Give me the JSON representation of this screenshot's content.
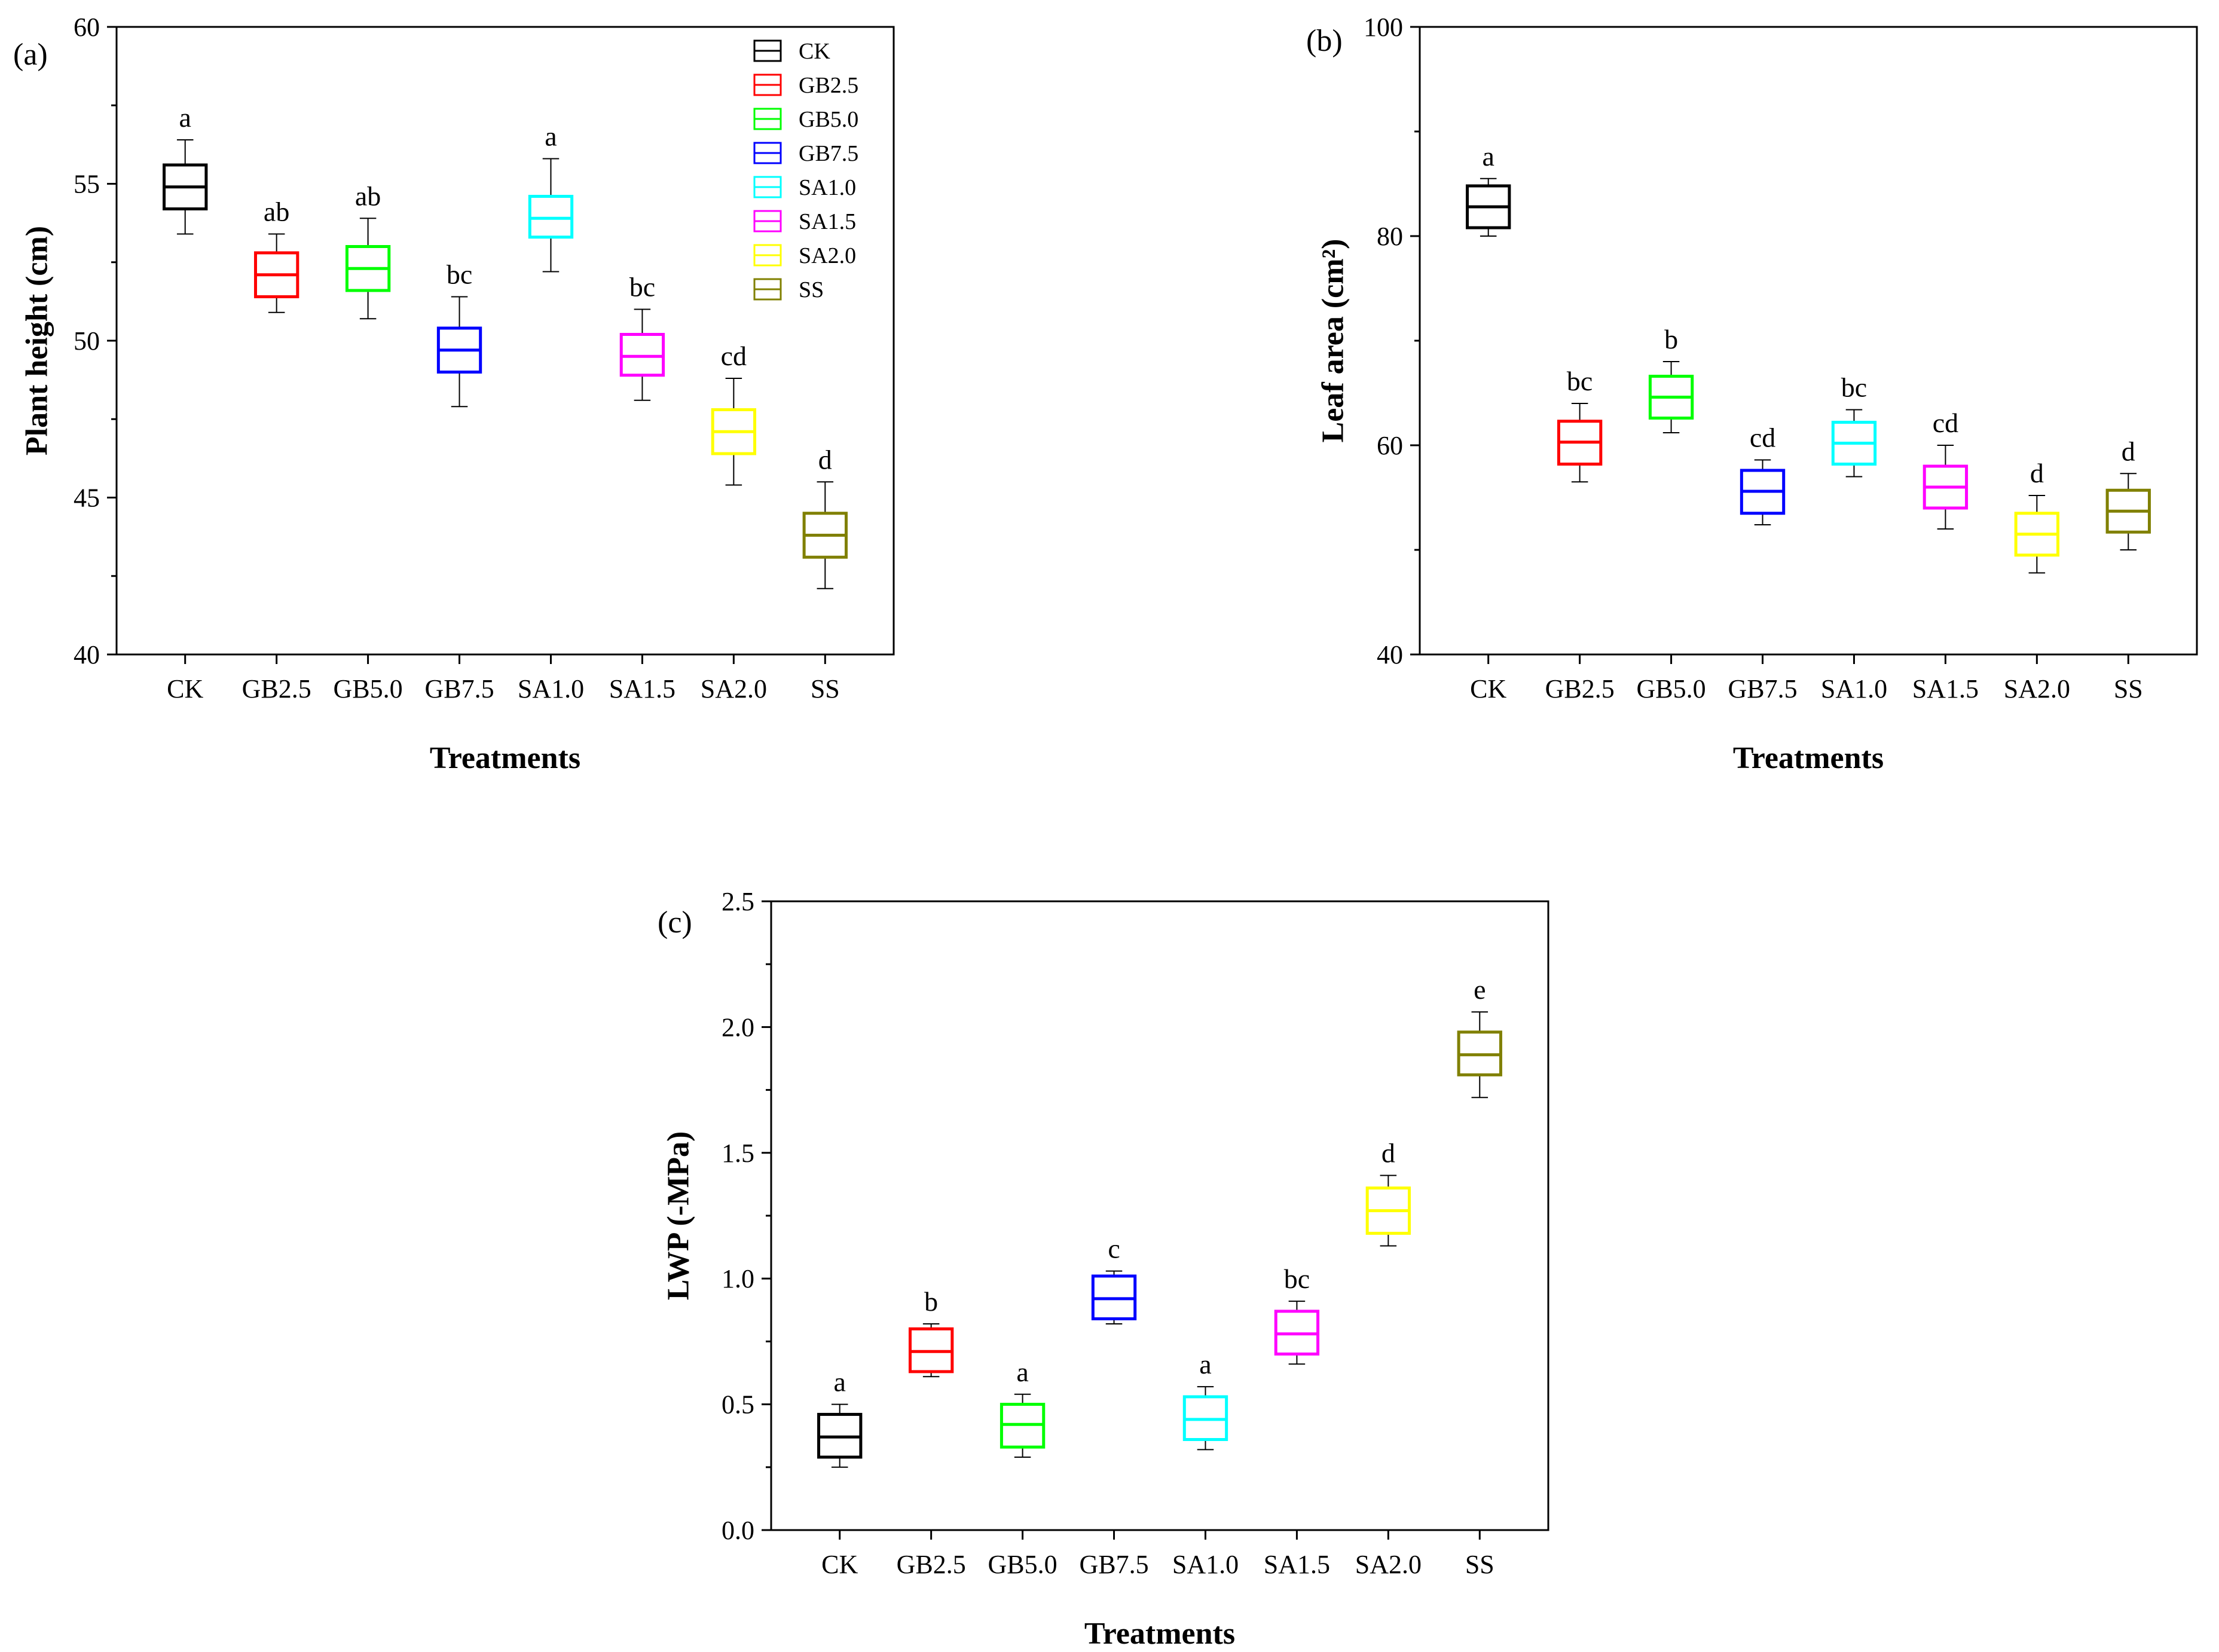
{
  "categories": [
    "CK",
    "GB2.5",
    "GB5.0",
    "GB7.5",
    "SA1.0",
    "SA1.5",
    "SA2.0",
    "SS"
  ],
  "colors": {
    "CK": "#000000",
    "GB2.5": "#ff0000",
    "GB5.0": "#00ff00",
    "GB7.5": "#0000ff",
    "SA1.0": "#00ffff",
    "SA1.5": "#ff00ff",
    "SA2.0": "#ffff00",
    "SS": "#808000"
  },
  "legend": {
    "position": "top-right (panel a)",
    "entries": [
      "CK",
      "GB2.5",
      "GB5.0",
      "GB7.5",
      "SA1.0",
      "SA1.5",
      "SA2.0",
      "SS"
    ]
  },
  "chart_data": [
    {
      "type": "box",
      "panel": "(a)",
      "xlabel": "Treatments",
      "ylabel": "Plant height (cm)",
      "ylim": [
        40,
        60
      ],
      "yticks": [
        "40",
        "45",
        "50",
        "55",
        "60"
      ],
      "boxes": [
        {
          "category": "CK",
          "whisker_low": 53.4,
          "q1": 54.2,
          "median": 54.9,
          "q3": 55.6,
          "whisker_high": 56.4,
          "letter": "a"
        },
        {
          "category": "GB2.5",
          "whisker_low": 50.9,
          "q1": 51.4,
          "median": 52.1,
          "q3": 52.8,
          "whisker_high": 53.4,
          "letter": "ab"
        },
        {
          "category": "GB5.0",
          "whisker_low": 50.7,
          "q1": 51.6,
          "median": 52.3,
          "q3": 53.0,
          "whisker_high": 53.9,
          "letter": "ab"
        },
        {
          "category": "GB7.5",
          "whisker_low": 47.9,
          "q1": 49.0,
          "median": 49.7,
          "q3": 50.4,
          "whisker_high": 51.4,
          "letter": "bc"
        },
        {
          "category": "SA1.0",
          "whisker_low": 52.2,
          "q1": 53.3,
          "median": 53.9,
          "q3": 54.6,
          "whisker_high": 55.8,
          "letter": "a"
        },
        {
          "category": "SA1.5",
          "whisker_low": 48.1,
          "q1": 48.9,
          "median": 49.5,
          "q3": 50.2,
          "whisker_high": 51.0,
          "letter": "bc"
        },
        {
          "category": "SA2.0",
          "whisker_low": 45.4,
          "q1": 46.4,
          "median": 47.1,
          "q3": 47.8,
          "whisker_high": 48.8,
          "letter": "cd"
        },
        {
          "category": "SS",
          "whisker_low": 42.1,
          "q1": 43.1,
          "median": 43.8,
          "q3": 44.5,
          "whisker_high": 45.5,
          "letter": "d"
        }
      ]
    },
    {
      "type": "box",
      "panel": "(b)",
      "xlabel": "Treatments",
      "ylabel": "Leaf area (cm²)",
      "ylim": [
        40,
        100
      ],
      "yticks": [
        "40",
        "60",
        "80",
        "100"
      ],
      "boxes": [
        {
          "category": "CK",
          "whisker_low": 80.0,
          "q1": 80.8,
          "median": 82.8,
          "q3": 84.8,
          "whisker_high": 85.5,
          "letter": "a"
        },
        {
          "category": "GB2.5",
          "whisker_low": 56.5,
          "q1": 58.2,
          "median": 60.3,
          "q3": 62.3,
          "whisker_high": 64.0,
          "letter": "bc"
        },
        {
          "category": "GB5.0",
          "whisker_low": 61.2,
          "q1": 62.6,
          "median": 64.6,
          "q3": 66.6,
          "whisker_high": 68.0,
          "letter": "b"
        },
        {
          "category": "GB7.5",
          "whisker_low": 52.4,
          "q1": 53.5,
          "median": 55.6,
          "q3": 57.6,
          "whisker_high": 58.6,
          "letter": "cd"
        },
        {
          "category": "SA1.0",
          "whisker_low": 57.0,
          "q1": 58.2,
          "median": 60.2,
          "q3": 62.2,
          "whisker_high": 63.4,
          "letter": "bc"
        },
        {
          "category": "SA1.5",
          "whisker_low": 52.0,
          "q1": 54.0,
          "median": 56.0,
          "q3": 58.0,
          "whisker_high": 60.0,
          "letter": "cd"
        },
        {
          "category": "SA2.0",
          "whisker_low": 47.8,
          "q1": 49.5,
          "median": 51.5,
          "q3": 53.5,
          "whisker_high": 55.2,
          "letter": "d"
        },
        {
          "category": "SS",
          "whisker_low": 50.0,
          "q1": 51.7,
          "median": 53.7,
          "q3": 55.7,
          "whisker_high": 57.3,
          "letter": "d"
        }
      ]
    },
    {
      "type": "box",
      "panel": "(c)",
      "xlabel": "Treatments",
      "ylabel": "LWP (-MPa)",
      "ylim": [
        0.0,
        2.5
      ],
      "yticks": [
        "0.0",
        "0.5",
        "1.0",
        "1.5",
        "2.0",
        "2.5"
      ],
      "boxes": [
        {
          "category": "CK",
          "whisker_low": 0.25,
          "q1": 0.29,
          "median": 0.37,
          "q3": 0.46,
          "whisker_high": 0.5,
          "letter": "a"
        },
        {
          "category": "GB2.5",
          "whisker_low": 0.61,
          "q1": 0.63,
          "median": 0.71,
          "q3": 0.8,
          "whisker_high": 0.82,
          "letter": "b"
        },
        {
          "category": "GB5.0",
          "whisker_low": 0.29,
          "q1": 0.33,
          "median": 0.42,
          "q3": 0.5,
          "whisker_high": 0.54,
          "letter": "a"
        },
        {
          "category": "GB7.5",
          "whisker_low": 0.82,
          "q1": 0.84,
          "median": 0.92,
          "q3": 1.01,
          "whisker_high": 1.03,
          "letter": "c"
        },
        {
          "category": "SA1.0",
          "whisker_low": 0.32,
          "q1": 0.36,
          "median": 0.44,
          "q3": 0.53,
          "whisker_high": 0.57,
          "letter": "a"
        },
        {
          "category": "SA1.5",
          "whisker_low": 0.66,
          "q1": 0.7,
          "median": 0.78,
          "q3": 0.87,
          "whisker_high": 0.91,
          "letter": "bc"
        },
        {
          "category": "SA2.0",
          "whisker_low": 1.13,
          "q1": 1.18,
          "median": 1.27,
          "q3": 1.36,
          "whisker_high": 1.41,
          "letter": "d"
        },
        {
          "category": "SS",
          "whisker_low": 1.72,
          "q1": 1.81,
          "median": 1.89,
          "q3": 1.98,
          "whisker_high": 2.06,
          "letter": "e"
        }
      ]
    }
  ]
}
